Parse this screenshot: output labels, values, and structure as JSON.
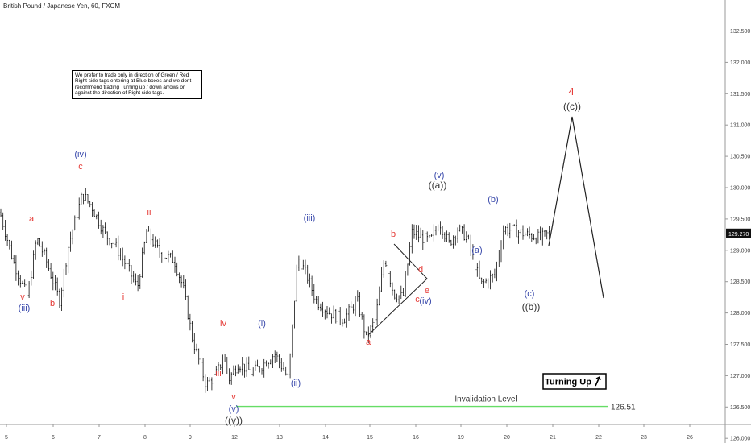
{
  "symbol_title": "British Pound / Japanese Yen, 60, FXCM",
  "note": "We prefer to trade only in direction of Green / Red Right side tags entering at Blue boxes and we dont recommend trading Turning up / down arrows or against the direction of Right side tags.",
  "colors": {
    "red": "#e53935",
    "blue": "#3949ab",
    "dark": "#333333",
    "invalidation": "#66dd66",
    "candle": "#111111",
    "price_tag": "#111111"
  },
  "chart_data": {
    "type": "line",
    "title": "",
    "ylim": [
      126.0,
      132.75
    ],
    "grid": false,
    "x_ticks": [
      "5",
      "6",
      "7",
      "8",
      "9",
      "12",
      "13",
      "14",
      "15",
      "16",
      "19",
      "20",
      "21",
      "22",
      "23",
      "26"
    ],
    "y_ticks": [
      "126.000",
      "126.500",
      "127.000",
      "127.500",
      "128.000",
      "128.500",
      "129.000",
      "129.500",
      "130.000",
      "130.500",
      "131.000",
      "131.500",
      "132.000",
      "132.500"
    ],
    "series": [
      {
        "values_note": "approximate hourly close path",
        "x": [
          0,
          0.3,
          0.6,
          0.8,
          1.0,
          1.3,
          1.5,
          1.8,
          2.0,
          2.3,
          2.5,
          2.8,
          3.0,
          3.2,
          3.5,
          3.8,
          4.0,
          4.2,
          4.5,
          4.7,
          4.9,
          5.0,
          5.2,
          5.5,
          5.7,
          6.0,
          6.3,
          6.5,
          6.7,
          6.9,
          7.2,
          7.5,
          7.8,
          8.0,
          8.2,
          8.4,
          8.6,
          8.8,
          9.0,
          9.2,
          9.4,
          9.6,
          9.8,
          10.0,
          10.2,
          10.5,
          10.8,
          11.0,
          11.3,
          11.5,
          11.8,
          12.0
        ],
        "y": [
          129.6,
          128.8,
          128.25,
          129.2,
          128.85,
          128.2,
          129.1,
          129.9,
          129.7,
          129.25,
          129.1,
          128.7,
          128.4,
          129.3,
          128.95,
          128.85,
          128.4,
          127.6,
          126.85,
          127.0,
          127.3,
          126.95,
          127.2,
          127.05,
          127.15,
          127.35,
          126.95,
          128.9,
          128.6,
          128.2,
          128.0,
          127.9,
          128.2,
          127.6,
          127.9,
          128.9,
          128.3,
          128.25,
          129.3,
          129.2,
          129.15,
          129.45,
          129.1,
          129.35,
          129.2,
          128.45,
          128.6,
          129.35,
          129.3,
          129.25,
          129.2,
          129.27
        ]
      }
    ],
    "price_now": "129.270",
    "invalidation": {
      "label": "Invalidation Level",
      "value": 126.51,
      "value_label": "126.51"
    },
    "button": "Turning Up",
    "labels": [
      {
        "text": "4",
        "color": "red"
      },
      {
        "text": "((c))",
        "color": "dark"
      },
      {
        "text": "((a))",
        "color": "dark"
      },
      {
        "text": "((b))",
        "color": "dark"
      },
      {
        "text": "((v))",
        "color": "dark"
      },
      {
        "text": "(iv)",
        "color": "blue"
      },
      {
        "text": "(iii)",
        "color": "blue"
      },
      {
        "text": "(iii)",
        "color": "blue"
      },
      {
        "text": "(i)",
        "color": "blue"
      },
      {
        "text": "(ii)",
        "color": "blue"
      },
      {
        "text": "(v)",
        "color": "blue"
      },
      {
        "text": "(v)",
        "color": "blue"
      },
      {
        "text": "(iv)",
        "color": "blue"
      },
      {
        "text": "(a)",
        "color": "blue"
      },
      {
        "text": "(b)",
        "color": "blue"
      },
      {
        "text": "(c)",
        "color": "blue"
      },
      {
        "text": "a",
        "color": "red"
      },
      {
        "text": "b",
        "color": "red"
      },
      {
        "text": "c",
        "color": "red"
      },
      {
        "text": "v",
        "color": "red"
      },
      {
        "text": "ii",
        "color": "red"
      },
      {
        "text": "i",
        "color": "red"
      },
      {
        "text": "iv",
        "color": "red"
      },
      {
        "text": "iii",
        "color": "red"
      },
      {
        "text": "v",
        "color": "red"
      },
      {
        "text": "a",
        "color": "red"
      },
      {
        "text": "b",
        "color": "red"
      },
      {
        "text": "c",
        "color": "red"
      },
      {
        "text": "d",
        "color": "red"
      },
      {
        "text": "e",
        "color": "red"
      }
    ]
  }
}
